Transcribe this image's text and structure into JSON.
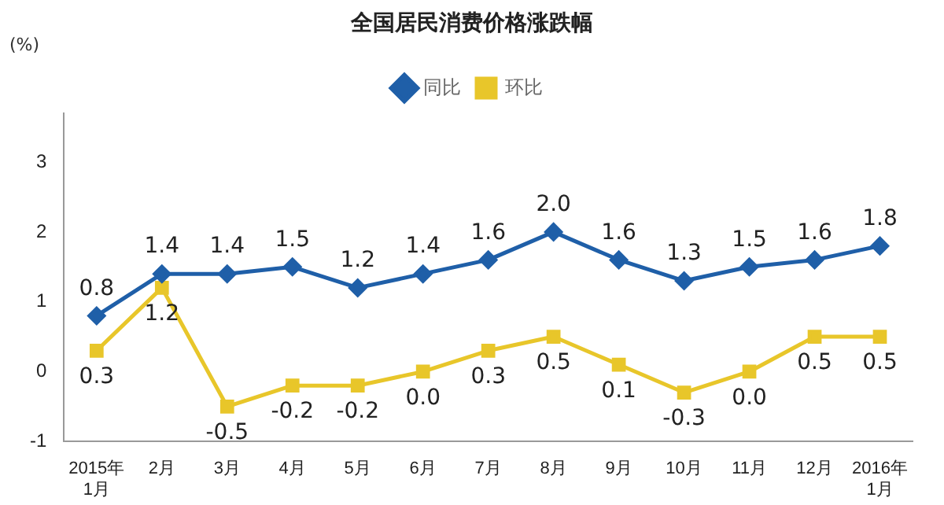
{
  "chart_data": {
    "type": "line",
    "title": "全国居民消费价格涨跌幅",
    "ylabel": "(%)",
    "categories": [
      "2015年\n1月",
      "2月",
      "3月",
      "4月",
      "5月",
      "6月",
      "7月",
      "8月",
      "9月",
      "10月",
      "11月",
      "12月",
      "2016年\n1月"
    ],
    "series": [
      {
        "name": "同比",
        "color": "#1f5fa8",
        "marker": "diamond",
        "values": [
          0.8,
          1.4,
          1.4,
          1.5,
          1.2,
          1.4,
          1.6,
          2.0,
          1.6,
          1.3,
          1.5,
          1.6,
          1.8
        ],
        "value_labels": [
          "0.8",
          "1.4",
          "1.4",
          "1.5",
          "1.2",
          "1.4",
          "1.6",
          "2.0",
          "1.6",
          "1.3",
          "1.5",
          "1.6",
          "1.8"
        ]
      },
      {
        "name": "环比",
        "color": "#e8c62a",
        "marker": "square",
        "values": [
          0.3,
          1.2,
          -0.5,
          -0.2,
          -0.2,
          0.0,
          0.3,
          0.5,
          0.1,
          -0.3,
          0.0,
          0.5,
          0.5
        ],
        "value_labels": [
          "0.3",
          "1.2",
          "-0.5",
          "-0.2",
          "-0.2",
          "0.0",
          "0.3",
          "0.5",
          "0.1",
          "-0.3",
          "0.0",
          "0.5",
          "0.5"
        ]
      }
    ],
    "ylim": [
      -1,
      3.7
    ],
    "yticks": [
      -1,
      0,
      1,
      2,
      3
    ],
    "grid": false,
    "legend": "top"
  }
}
